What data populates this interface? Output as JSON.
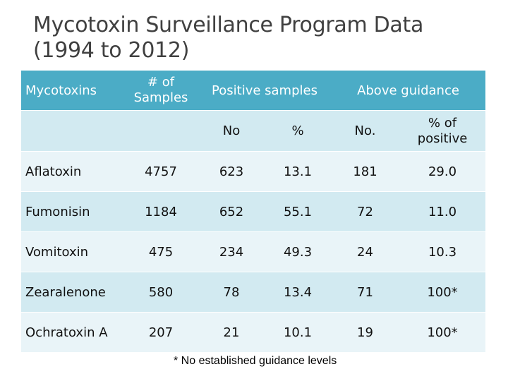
{
  "title": {
    "line1": "Mycotoxin Surveillance Program Data",
    "line2": "(1994 to 2012)"
  },
  "header": {
    "mycotoxins": "Mycotoxins",
    "samples_line1": "# of",
    "samples_line2": "Samples",
    "positive": "Positive samples",
    "above": "Above guidance"
  },
  "subheader": {
    "no": "No",
    "percent": "%",
    "no2": "No.",
    "pct_positive_line1": "% of",
    "pct_positive_line2": "positive"
  },
  "rows": [
    {
      "name": "Aflatoxin",
      "samples": "4757",
      "pos_no": "623",
      "pos_pct": "13.1",
      "above_no": "181",
      "above_pct": "29.0"
    },
    {
      "name": "Fumonisin",
      "samples": "1184",
      "pos_no": "652",
      "pos_pct": "55.1",
      "above_no": "72",
      "above_pct": "11.0"
    },
    {
      "name": "Vomitoxin",
      "samples": "475",
      "pos_no": "234",
      "pos_pct": "49.3",
      "above_no": "24",
      "above_pct": "10.3"
    },
    {
      "name": "Zearalenone",
      "samples": "580",
      "pos_no": "78",
      "pos_pct": "13.4",
      "above_no": "71",
      "above_pct": "100*"
    },
    {
      "name": "Ochratoxin A",
      "samples": "207",
      "pos_no": "21",
      "pos_pct": "10.1",
      "above_no": "19",
      "above_pct": "100*"
    }
  ],
  "footnote": "* No established guidance levels",
  "colors": {
    "header": "#4bacc6",
    "band": "#d2eaf1",
    "band_light": "#e9f4f8",
    "title": "#404040"
  }
}
